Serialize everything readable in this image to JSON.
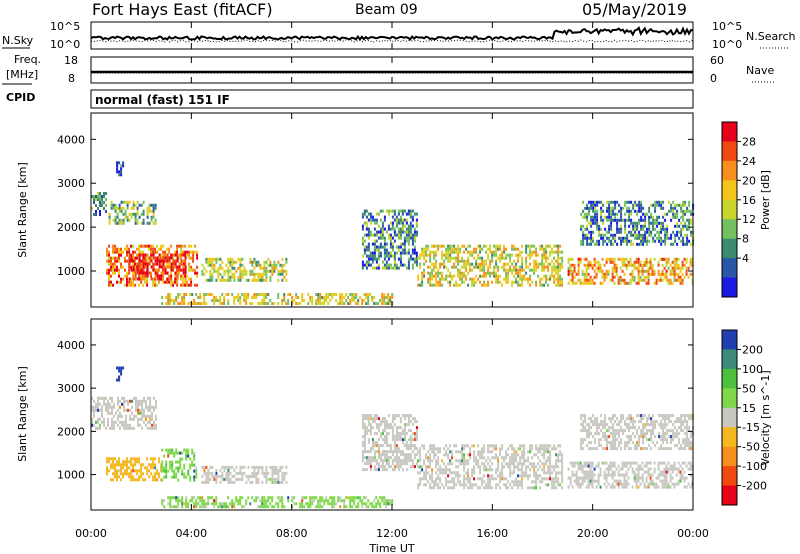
{
  "header": {
    "station_title": "Fort Hays East (fitACF)",
    "beam": "Beam 09",
    "date": "05/May/2019"
  },
  "top_panels": {
    "nsky_label": "N.Sky",
    "nsky_ticks": [
      "10^5",
      "10^0"
    ],
    "nsearch_label": "N.Search",
    "nsearch_ticks": [
      "10^5",
      "10^0"
    ],
    "freq_label": "Freq.",
    "freq_unit": "[MHz]",
    "freq_ticks": [
      "18",
      "8"
    ],
    "nave_label": "Nave",
    "nave_ticks": [
      "60",
      "0"
    ],
    "cpid_label": "CPID",
    "cpid_value": "normal (fast) 151 IF"
  },
  "axes": {
    "ylabel": "Slant Range [km]",
    "xlabel": "Time UT",
    "y_ticks": [
      "4000",
      "3000",
      "2000",
      "1000"
    ],
    "x_ticks": [
      "00:00",
      "04:00",
      "08:00",
      "12:00",
      "16:00",
      "20:00",
      "00:00"
    ]
  },
  "power_colorbar": {
    "label": "Power [dB]",
    "ticks": [
      "28",
      "24",
      "20",
      "16",
      "12",
      "8",
      "4"
    ],
    "colors": [
      "#e6001a",
      "#f04a10",
      "#f5901c",
      "#f5c61a",
      "#c8d52a",
      "#74c060",
      "#3c8a72",
      "#2a56a8",
      "#1a1ae0"
    ]
  },
  "velocity_colorbar": {
    "label": "Velocity [m s^-1]",
    "ticks": [
      "200",
      "100",
      "50",
      "15",
      "-15",
      "-50",
      "-100",
      "-200"
    ],
    "colors": [
      "#2040b0",
      "#3c8a78",
      "#4ec040",
      "#7ed84a",
      "#c8c8c0",
      "#f5b820",
      "#f5901c",
      "#f04a10",
      "#e6001a"
    ]
  },
  "chart_data": [
    {
      "type": "heatmap",
      "panel": "power",
      "title": "",
      "xlabel": "Time UT",
      "ylabel": "Slant Range [km]",
      "xlim": [
        0,
        24
      ],
      "ylim": [
        180,
        4600
      ],
      "colorbar_label": "Power [dB]",
      "colorbar_range": [
        0,
        30
      ],
      "regions": [
        {
          "t": [
            0.0,
            0.6
          ],
          "r": [
            2300,
            2800
          ],
          "value": 8
        },
        {
          "t": [
            0.7,
            2.6
          ],
          "r": [
            2100,
            2600
          ],
          "value": 12
        },
        {
          "t": [
            1.0,
            1.3
          ],
          "r": [
            3200,
            3500
          ],
          "value": 4
        },
        {
          "t": [
            0.6,
            4.2
          ],
          "r": [
            700,
            1600
          ],
          "value": 22
        },
        {
          "t": [
            1.5,
            3.8
          ],
          "r": [
            800,
            1400
          ],
          "value": 28
        },
        {
          "t": [
            4.4,
            7.8
          ],
          "r": [
            800,
            1300
          ],
          "value": 14
        },
        {
          "t": [
            2.8,
            12.0
          ],
          "r": [
            250,
            500
          ],
          "value": 16
        },
        {
          "t": [
            10.8,
            13.0
          ],
          "r": [
            1100,
            2400
          ],
          "value": 8
        },
        {
          "t": [
            13.0,
            18.8
          ],
          "r": [
            700,
            1600
          ],
          "value": 16
        },
        {
          "t": [
            19.0,
            24.0
          ],
          "r": [
            700,
            1300
          ],
          "value": 20
        },
        {
          "t": [
            19.5,
            24.0
          ],
          "r": [
            1600,
            2600
          ],
          "value": 8
        }
      ]
    },
    {
      "type": "heatmap",
      "panel": "velocity",
      "title": "",
      "xlabel": "Time UT",
      "ylabel": "Slant Range [km]",
      "xlim": [
        0,
        24
      ],
      "ylim": [
        180,
        4600
      ],
      "colorbar_label": "Velocity [m s^-1]",
      "colorbar_range": [
        -200,
        200
      ],
      "regions": [
        {
          "t": [
            0.0,
            2.6
          ],
          "r": [
            2100,
            2800
          ],
          "value": 0
        },
        {
          "t": [
            1.0,
            1.3
          ],
          "r": [
            3200,
            3500
          ],
          "value": 200
        },
        {
          "t": [
            0.6,
            2.8
          ],
          "r": [
            900,
            1400
          ],
          "value": -40
        },
        {
          "t": [
            2.8,
            4.2
          ],
          "r": [
            900,
            1600
          ],
          "value": 60
        },
        {
          "t": [
            4.4,
            7.8
          ],
          "r": [
            800,
            1200
          ],
          "value": 0
        },
        {
          "t": [
            2.8,
            12.0
          ],
          "r": [
            250,
            500
          ],
          "value": 30
        },
        {
          "t": [
            10.8,
            13.0
          ],
          "r": [
            1100,
            2400
          ],
          "value": 0
        },
        {
          "t": [
            13.0,
            18.8
          ],
          "r": [
            700,
            1700
          ],
          "value": 0
        },
        {
          "t": [
            19.0,
            24.0
          ],
          "r": [
            700,
            1300
          ],
          "value": 0
        },
        {
          "t": [
            19.5,
            24.0
          ],
          "r": [
            1600,
            2400
          ],
          "value": 0
        }
      ]
    }
  ]
}
